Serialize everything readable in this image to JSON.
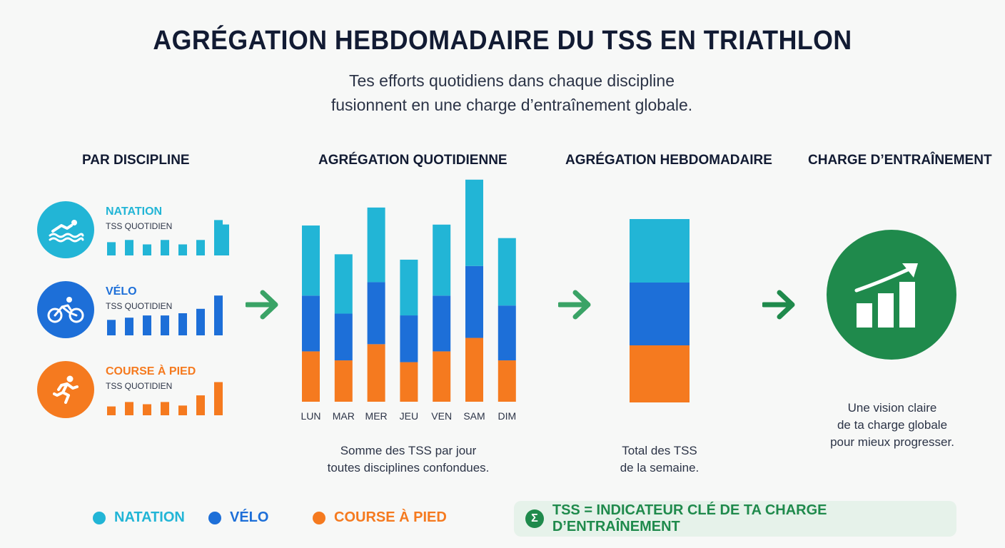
{
  "title": "AGRÉGATION HEBDOMADAIRE DU TSS EN TRIATHLON",
  "subtitle_line1": "Tes efforts quotidiens dans chaque discipline",
  "subtitle_line2": "fusionnent en une charge d’entraînement globale.",
  "columns": {
    "c1": "PAR DISCIPLINE",
    "c2": "AGRÉGATION QUOTIDIENNE",
    "c3": "AGRÉGATION HEBDOMADAIRE",
    "c4": "CHARGE D’ENTRAÎNEMENT"
  },
  "disciplines": [
    {
      "name": "NATATION",
      "sub": "TSS QUOTIDIEN",
      "icon": "swimmer-icon",
      "color": "#22b5d6",
      "mini": [
        3,
        3.5,
        2.5,
        3.5,
        2.5,
        3.5,
        8,
        7
      ]
    },
    {
      "name": "VÉLO",
      "sub": "TSS QUOTIDIEN",
      "icon": "cyclist-icon",
      "color": "#1d6fd8",
      "mini": [
        3.5,
        4,
        4.5,
        4.5,
        5,
        6,
        9
      ]
    },
    {
      "name": "COURSE À PIED",
      "sub": "TSS QUOTIDIEN",
      "icon": "runner-icon",
      "color": "#f57a1f",
      "mini": [
        2,
        3,
        2.5,
        3,
        2.2,
        4.5,
        7.5
      ]
    }
  ],
  "chart_data": {
    "type": "bar",
    "stacked": true,
    "categories": [
      "LUN",
      "MAR",
      "MER",
      "JEU",
      "VEN",
      "SAM",
      "DIM"
    ],
    "series": [
      {
        "name": "COURSE À PIED",
        "color": "#f57a1f",
        "values": [
          56,
          46,
          64,
          44,
          56,
          71,
          46
        ]
      },
      {
        "name": "VÉLO",
        "color": "#1d6fd8",
        "values": [
          62,
          52,
          69,
          52,
          62,
          80,
          61
        ]
      },
      {
        "name": "NATATION",
        "color": "#22b5d6",
        "values": [
          78,
          66,
          83,
          62,
          79,
          96,
          75
        ]
      }
    ],
    "weekly_total": {
      "segments": [
        {
          "name": "COURSE À PIED",
          "color": "#f57a1f",
          "value": 80
        },
        {
          "name": "VÉLO",
          "color": "#1d6fd8",
          "value": 88
        },
        {
          "name": "NATATION",
          "color": "#22b5d6",
          "value": 89
        }
      ]
    }
  },
  "captions": {
    "daily_line1": "Somme des TSS par jour",
    "daily_line2": "toutes disciplines confondues.",
    "weekly_line1": "Total des TSS",
    "weekly_line2": "de la semaine.",
    "load_line1": "Une vision claire",
    "load_line2": "de ta charge globale",
    "load_line3": "pour mieux progresser."
  },
  "legend": [
    {
      "label": "NATATION",
      "color": "#22b5d6"
    },
    {
      "label": "VÉLO",
      "color": "#1d6fd8"
    },
    {
      "label": "COURSE À PIED",
      "color": "#f57a1f"
    }
  ],
  "formula": "TSS = INDICATEUR CLÉ DE TA CHARGE D’ENTRAÎNEMENT",
  "formula_symbol": "Σ",
  "colors": {
    "arrow": "#3aa366",
    "load_circle": "#1f8a4c"
  }
}
